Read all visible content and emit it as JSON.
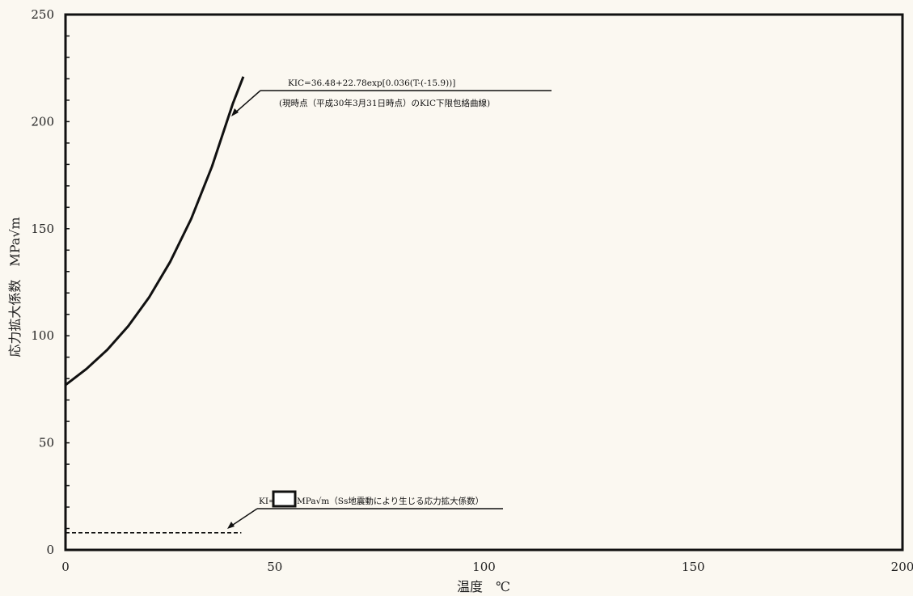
{
  "chart_data": {
    "type": "line",
    "xlabel": "温度　℃",
    "ylabel": "応力拡大係数　MPa√m",
    "xlim": [
      0,
      200
    ],
    "ylim": [
      0,
      250
    ],
    "x_ticks": [
      0,
      50,
      100,
      150,
      200
    ],
    "y_ticks": [
      0,
      50,
      100,
      150,
      200,
      250
    ],
    "grid": false,
    "series": [
      {
        "name": "KIC",
        "style": "solid",
        "x": [
          0,
          5,
          10,
          15,
          20,
          25,
          30,
          35,
          40,
          42.5
        ],
        "y": [
          77,
          84.5,
          93.5,
          104.5,
          118,
          134.5,
          154.5,
          179,
          208.5,
          221
        ]
      },
      {
        "name": "KI",
        "style": "dashed",
        "x": [
          0,
          42
        ],
        "y": [
          8,
          8
        ]
      }
    ],
    "annotations": {
      "kic_formula": "KIC=36.48+22.78exp[0.036(T-(-15.9))]",
      "kic_caption": "(現時点（平成30年3月31日時点）のKIC下限包絡曲線)",
      "ki_prefix": "KI=",
      "ki_suffix": "MPa√m（Ss地震動により生じる応力拡大係数）"
    }
  }
}
